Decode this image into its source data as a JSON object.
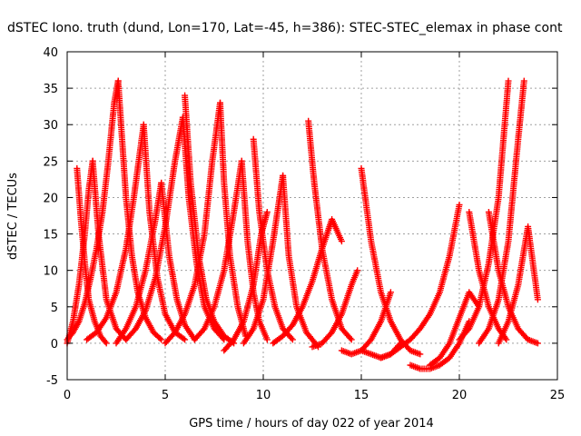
{
  "chart_data": {
    "type": "scatter",
    "title": "dSTEC Iono. truth (dund, Lon=170, Lat=-45, h=386): STEC-STEC_elemax in phase cont",
    "xlabel": "GPS time / hours of day 022 of year 2014",
    "ylabel": "dSTEC  / TECUs",
    "xlim": [
      0,
      25
    ],
    "ylim": [
      -5,
      40
    ],
    "xticks": [
      0,
      5,
      10,
      15,
      20,
      25
    ],
    "yticks": [
      -5,
      0,
      5,
      10,
      15,
      20,
      25,
      30,
      35,
      40
    ],
    "grid": true,
    "marker": "+",
    "color": "#ff0000",
    "series": [
      {
        "x": [
          0.0,
          0.3,
          0.6,
          0.9,
          1.2,
          1.5,
          1.8,
          2.1,
          2.4,
          2.6
        ],
        "values": [
          0.5,
          1.5,
          3.0,
          5.5,
          9.0,
          13.0,
          18.0,
          25.0,
          33.0,
          36.0
        ]
      },
      {
        "x": [
          2.6,
          2.8,
          3.0,
          3.3,
          3.6,
          4.0,
          4.4,
          4.8
        ],
        "values": [
          36.0,
          28.0,
          20.0,
          12.0,
          7.0,
          3.5,
          1.5,
          0.5
        ]
      },
      {
        "x": [
          0.5,
          0.7,
          0.9,
          1.1,
          1.4,
          1.7,
          2.0
        ],
        "values": [
          24.0,
          17.0,
          11.0,
          6.0,
          3.0,
          1.0,
          0.0
        ]
      },
      {
        "x": [
          0.0,
          0.3,
          0.6,
          0.9,
          1.1,
          1.3
        ],
        "values": [
          0.0,
          3.0,
          8.0,
          15.0,
          21.0,
          25.0
        ]
      },
      {
        "x": [
          1.3,
          1.6,
          2.0,
          2.5,
          3.0
        ],
        "values": [
          25.0,
          15.0,
          6.0,
          2.0,
          0.5
        ]
      },
      {
        "x": [
          1.0,
          1.5,
          2.0,
          2.5,
          3.0,
          3.4,
          3.7,
          3.9
        ],
        "values": [
          0.5,
          1.5,
          3.5,
          7.0,
          13.0,
          20.0,
          26.0,
          30.0
        ]
      },
      {
        "x": [
          3.9,
          4.2,
          4.6,
          5.0,
          5.5,
          6.0
        ],
        "values": [
          30.0,
          18.0,
          9.0,
          4.0,
          1.5,
          0.5
        ]
      },
      {
        "x": [
          2.5,
          3.0,
          3.5,
          4.0,
          4.5,
          4.8
        ],
        "values": [
          0.0,
          2.0,
          5.0,
          10.0,
          17.0,
          22.0
        ]
      },
      {
        "x": [
          4.8,
          5.2,
          5.6,
          6.0,
          6.5
        ],
        "values": [
          22.0,
          12.0,
          6.0,
          2.5,
          0.5
        ]
      },
      {
        "x": [
          3.0,
          3.5,
          4.0,
          4.5,
          5.0,
          5.5,
          5.9
        ],
        "values": [
          0.5,
          2.0,
          4.5,
          9.0,
          16.0,
          25.0,
          31.0
        ]
      },
      {
        "x": [
          5.9,
          6.2,
          6.6,
          7.0,
          7.5,
          8.0
        ],
        "values": [
          31.0,
          20.0,
          11.0,
          5.0,
          2.0,
          0.5
        ]
      },
      {
        "x": [
          6.0,
          6.3,
          6.7,
          7.1,
          7.5,
          8.0,
          8.5
        ],
        "values": [
          34.0,
          22.0,
          12.0,
          6.0,
          3.0,
          1.0,
          0.0
        ]
      },
      {
        "x": [
          5.0,
          5.5,
          6.0,
          6.5,
          7.0,
          7.4,
          7.8
        ],
        "values": [
          0.0,
          1.5,
          4.0,
          8.0,
          15.0,
          25.0,
          33.0
        ]
      },
      {
        "x": [
          7.8,
          8.0,
          8.3,
          8.7,
          9.1
        ],
        "values": [
          33.0,
          22.0,
          12.0,
          5.0,
          1.0
        ]
      },
      {
        "x": [
          6.5,
          7.0,
          7.5,
          8.0,
          8.5,
          8.9
        ],
        "values": [
          0.5,
          2.0,
          5.0,
          10.0,
          18.0,
          25.0
        ]
      },
      {
        "x": [
          8.9,
          9.2,
          9.5,
          9.8,
          10.2
        ],
        "values": [
          25.0,
          14.0,
          7.0,
          3.0,
          0.5
        ]
      },
      {
        "x": [
          8.0,
          8.5,
          9.0,
          9.5,
          9.9,
          10.2
        ],
        "values": [
          -1.0,
          0.5,
          3.0,
          8.0,
          15.0,
          18.0
        ]
      },
      {
        "x": [
          9.5,
          9.8,
          10.2,
          10.6,
          11.0,
          11.5
        ],
        "values": [
          28.0,
          18.0,
          10.0,
          5.0,
          2.0,
          0.5
        ]
      },
      {
        "x": [
          9.0,
          9.5,
          10.0,
          10.5,
          11.0
        ],
        "values": [
          0.0,
          2.0,
          6.0,
          14.0,
          23.0
        ]
      },
      {
        "x": [
          11.0,
          11.3,
          11.7,
          12.2,
          12.8
        ],
        "values": [
          23.0,
          12.0,
          5.0,
          1.5,
          -0.5
        ]
      },
      {
        "x": [
          10.5,
          11.0,
          11.5,
          12.0,
          12.5,
          13.0,
          13.5,
          14.0
        ],
        "values": [
          0.0,
          1.0,
          2.5,
          5.0,
          8.5,
          13.0,
          17.0,
          14.0
        ]
      },
      {
        "x": [
          12.3,
          12.6,
          13.0,
          13.5,
          14.0,
          14.5
        ],
        "values": [
          30.5,
          22.0,
          13.0,
          6.0,
          2.0,
          0.5
        ]
      },
      {
        "x": [
          12.5,
          13.0,
          13.5,
          14.0,
          14.5,
          14.8
        ],
        "values": [
          -0.5,
          0.0,
          1.5,
          4.0,
          8.0,
          10.0
        ]
      },
      {
        "x": [
          15.0,
          15.5,
          16.0,
          16.5,
          17.0,
          17.5,
          18.0
        ],
        "values": [
          24.0,
          14.0,
          7.0,
          3.0,
          0.5,
          -1.0,
          -1.5
        ]
      },
      {
        "x": [
          14.0,
          14.5,
          15.0,
          15.5,
          16.0,
          16.5
        ],
        "values": [
          -1.0,
          -1.5,
          -1.0,
          0.5,
          3.0,
          7.0
        ]
      },
      {
        "x": [
          15.0,
          15.5,
          16.0,
          16.5,
          17.0
        ],
        "values": [
          -1.0,
          -1.5,
          -2.0,
          -1.5,
          0.0
        ]
      },
      {
        "x": [
          16.0,
          16.5,
          17.0,
          17.5,
          18.0,
          18.5,
          19.0,
          19.5,
          20.0
        ],
        "values": [
          -2.0,
          -1.5,
          -0.5,
          0.5,
          2.0,
          4.0,
          7.0,
          12.0,
          19.0
        ]
      },
      {
        "x": [
          17.5,
          18.0,
          18.5,
          19.0,
          19.5,
          20.0,
          20.5
        ],
        "values": [
          -3.0,
          -3.5,
          -3.5,
          -3.0,
          -2.0,
          0.0,
          3.0
        ]
      },
      {
        "x": [
          18.5,
          19.0,
          19.5,
          20.0,
          20.5,
          21.0
        ],
        "values": [
          -3.0,
          -2.0,
          0.0,
          3.5,
          7.0,
          5.0
        ]
      },
      {
        "x": [
          20.0,
          20.5,
          21.0,
          21.5,
          22.0,
          22.5
        ],
        "values": [
          0.5,
          2.0,
          5.0,
          11.0,
          20.0,
          36.0
        ]
      },
      {
        "x": [
          20.5,
          21.0,
          21.5,
          22.0,
          22.4
        ],
        "values": [
          18.0,
          10.0,
          5.0,
          2.0,
          0.5
        ]
      },
      {
        "x": [
          21.0,
          21.5,
          22.0,
          22.5,
          23.0,
          23.3
        ],
        "values": [
          0.0,
          2.0,
          6.0,
          14.0,
          28.0,
          36.0
        ]
      },
      {
        "x": [
          21.5,
          22.0,
          22.5,
          23.0,
          23.5,
          24.0
        ],
        "values": [
          18.0,
          10.0,
          5.0,
          2.0,
          0.5,
          0.0
        ]
      },
      {
        "x": [
          22.0,
          22.5,
          23.0,
          23.5,
          24.0
        ],
        "values": [
          0.0,
          3.0,
          8.0,
          16.0,
          6.0
        ]
      }
    ]
  }
}
